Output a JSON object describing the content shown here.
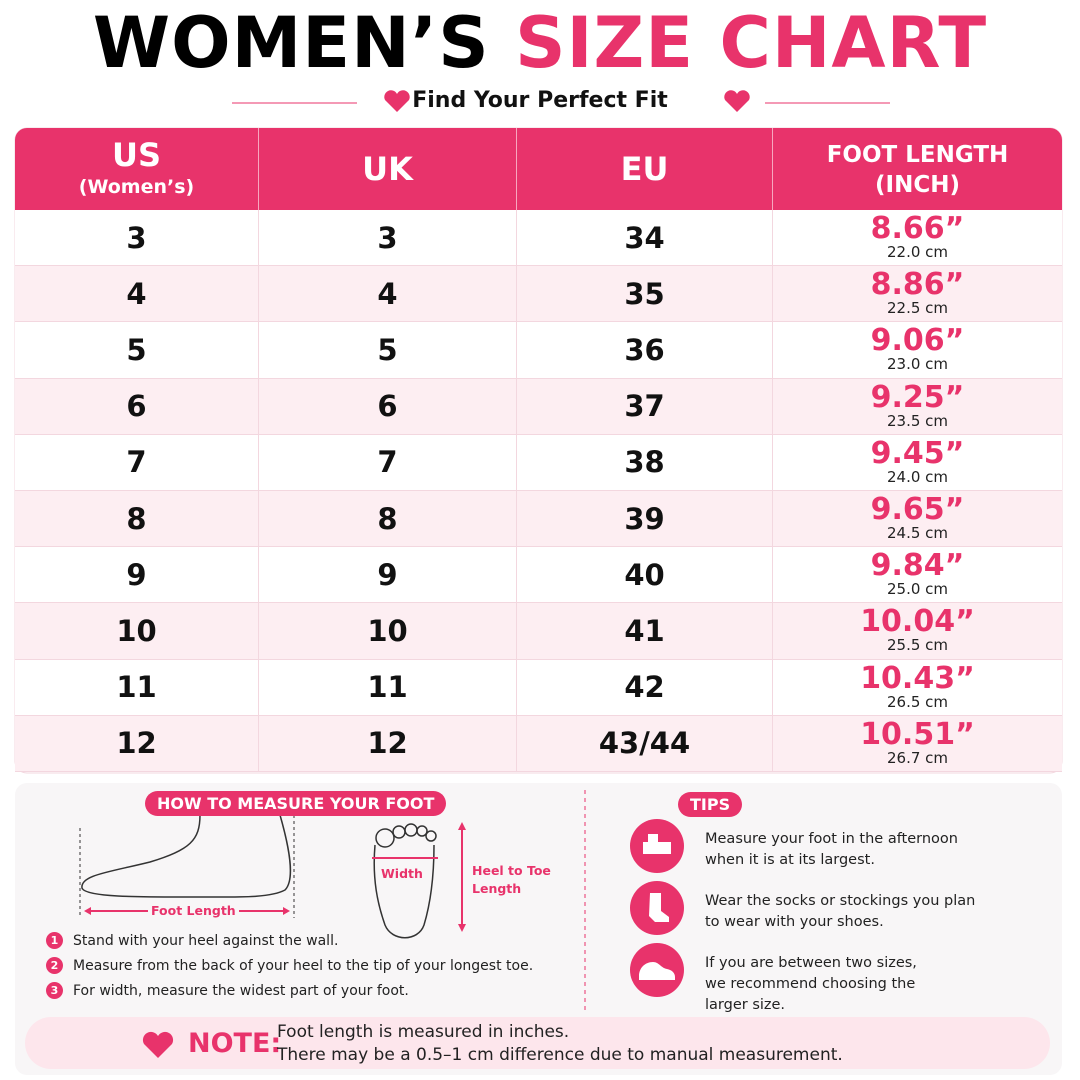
{
  "header": {
    "title_black": "WOMEN’S",
    "title_pink": "SIZE CHART",
    "subtitle": "Find Your Perfect Fit"
  },
  "table": {
    "headers": [
      {
        "main": "US",
        "sub": "(Women’s)"
      },
      {
        "main": "UK"
      },
      {
        "main": "EU"
      },
      {
        "main": "FOOT LENGTH",
        "sub": "(INCH)"
      }
    ],
    "rows": [
      [
        "3",
        "3",
        "34",
        "8.66”",
        "22.0 cm"
      ],
      [
        "4",
        "4",
        "35",
        "8.86”",
        "22.5 cm"
      ],
      [
        "5",
        "5",
        "36",
        "9.06”",
        "23.0 cm"
      ],
      [
        "6",
        "6",
        "37",
        "9.25”",
        "23.5 cm"
      ],
      [
        "7",
        "7",
        "38",
        "9.45”",
        "24.0 cm"
      ],
      [
        "8",
        "8",
        "39",
        "9.65”",
        "24.5 cm"
      ],
      [
        "9",
        "9",
        "40",
        "9.84”",
        "25.0 cm"
      ],
      [
        "10",
        "10",
        "41",
        "10.04”",
        "25.5 cm"
      ],
      [
        "11",
        "11",
        "42",
        "10.43”",
        "26.5 cm"
      ],
      [
        "12",
        "12",
        "43/44",
        "10.51”",
        "26.7 cm"
      ]
    ]
  },
  "measure": {
    "title": "HOW TO MEASURE YOUR FOOT",
    "foot_length": "Foot Length",
    "width": "Width",
    "heel_to_toe": "Heel to Toe Length",
    "steps": [
      {
        "number": "1",
        "text": "Stand with your heel against the wall."
      },
      {
        "number": "2",
        "text": "Measure from the back of your heel to the tip of your longest toe."
      },
      {
        "number": "3",
        "text": "For width, measure the widest part of your foot."
      }
    ]
  },
  "tips": {
    "title": "TIPS",
    "items": [
      "Measure your foot in the afternoon when it is at its largest.",
      "Wear the socks or stockings you plan to wear with your shoes.",
      "If you are between two sizes, we recommend choosing the larger size."
    ]
  },
  "note": {
    "label": "NOTE:",
    "lines": [
      "Foot length is measured in inches.",
      "There may be a 0.5–1 cm difference due to manual measurement."
    ]
  }
}
